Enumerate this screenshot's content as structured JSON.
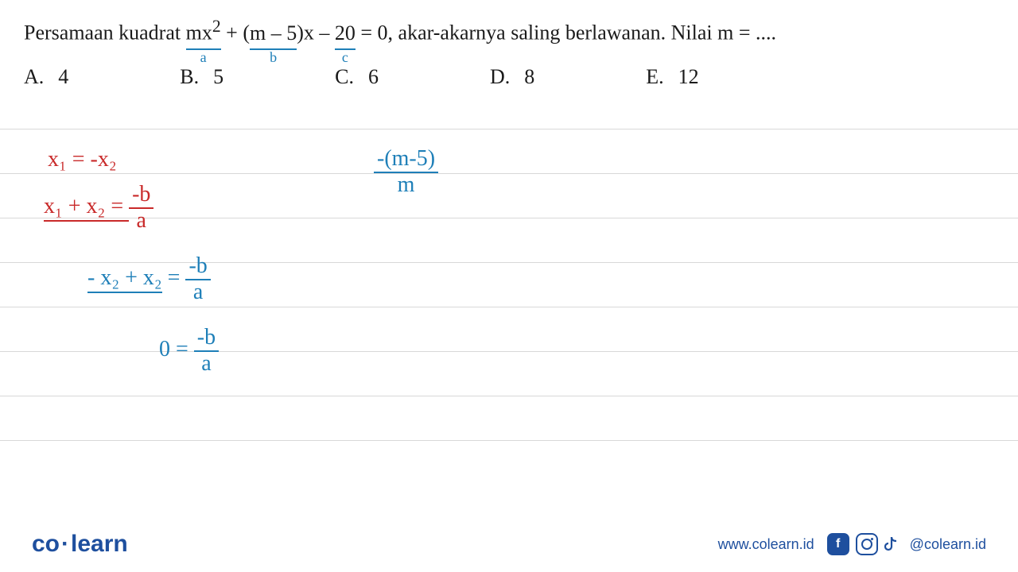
{
  "question": {
    "prefix": "Persamaan kuadrat ",
    "term_a": "mx",
    "sup_a": "2",
    "plus": " + (",
    "term_b_inner": "m – 5",
    "mid": ")x – ",
    "term_c": "20",
    "suffix": " = 0, akar-akarnya saling berlawanan. Nilai m = ....",
    "label_a": "a",
    "label_b": "b",
    "label_c": "c"
  },
  "options": [
    {
      "letter": "A.",
      "value": "4"
    },
    {
      "letter": "B.",
      "value": "5"
    },
    {
      "letter": "C.",
      "value": "6"
    },
    {
      "letter": "D.",
      "value": "8"
    },
    {
      "letter": "E.",
      "value": "12"
    }
  ],
  "handwriting": {
    "line1_red": "x₁ = -x₂",
    "line2_red_lhs": "x₁ + x₂ = ",
    "frac_neg_b": "-b",
    "frac_a": "a",
    "line3_blue_lhs": "- x₂ + x₂",
    "eq": " = ",
    "zero": "0",
    "rhs_num": "-(m-5)",
    "rhs_den": "m"
  },
  "ruled": {
    "line_count": 8,
    "line_gap": 56,
    "line_start": 10,
    "color": "#d8d8d8"
  },
  "footer": {
    "logo_left": "co",
    "logo_right": "learn",
    "url": "www.colearn.id",
    "handle": "@colearn.id",
    "fb_glyph": "f",
    "brand_color": "#1e4f9e"
  }
}
